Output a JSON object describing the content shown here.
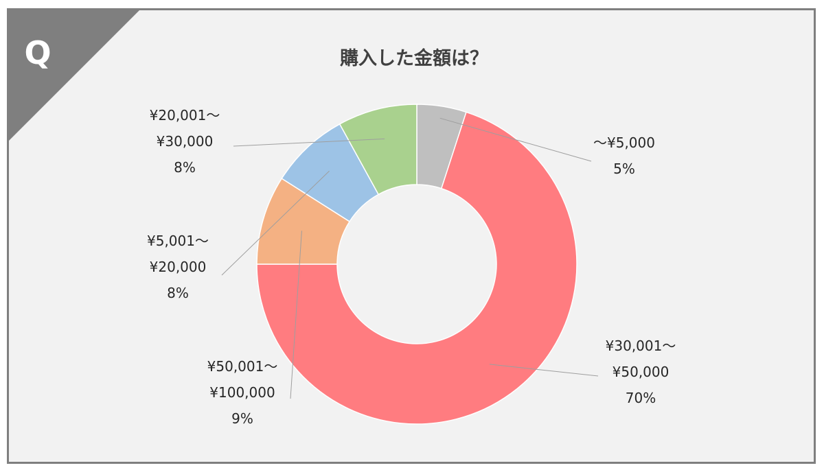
{
  "badge": {
    "letter": "Q"
  },
  "chart_data": {
    "type": "pie",
    "variant": "donut",
    "title": "購入した金額は？",
    "slices": [
      {
        "label_lines": [
          "～¥5,000"
        ],
        "percent_label": "5%",
        "value": 5,
        "color": "#bfbfbf"
      },
      {
        "label_lines": [
          "¥30,001～",
          "¥50,000"
        ],
        "percent_label": "70%",
        "value": 70,
        "color": "#ff7c80"
      },
      {
        "label_lines": [
          "¥50,001～",
          "¥100,000"
        ],
        "percent_label": "9%",
        "value": 9,
        "color": "#f4b183"
      },
      {
        "label_lines": [
          "¥5,001～",
          "¥20,000"
        ],
        "percent_label": "8%",
        "value": 8,
        "color": "#9dc3e6"
      },
      {
        "label_lines": [
          "¥20,001～",
          "¥30,000"
        ],
        "percent_label": "8%",
        "value": 8,
        "color": "#a9d18e"
      }
    ],
    "start": "top",
    "direction": "clockwise",
    "legend": "none",
    "data_labels": "outside with leader lines"
  }
}
